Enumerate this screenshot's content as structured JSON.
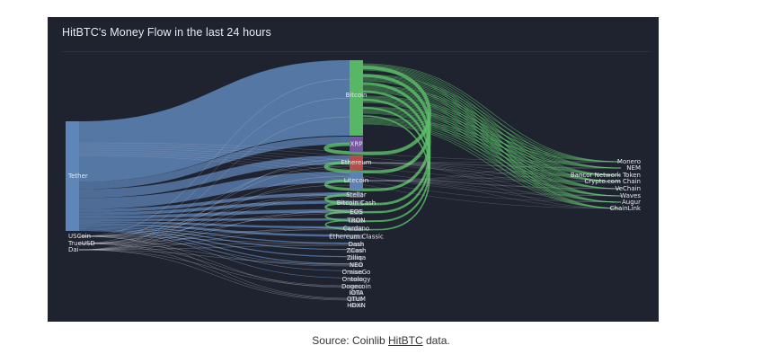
{
  "title": "HitBTC's Money Flow in the last 24 hours",
  "caption": {
    "prefix": "Source: Coinlib ",
    "link_text": "HitBTC",
    "suffix": " data."
  },
  "colors": {
    "background": "#1f2330",
    "tether_flow": "#5f86b8",
    "bitcoin_flow": "#5cc06a",
    "xrp_node": "#7a5aa8",
    "ethereum_node": "#c0504d",
    "thin_flow": "#c8ccd8",
    "label": "#e6e8ee"
  },
  "nodes": {
    "sources": [
      "Tether",
      "USCoin",
      "TrueUSD",
      "Dai"
    ],
    "middle": [
      "Bitcoin",
      "XRP",
      "Ethereum",
      "Litecoin",
      "Stellar",
      "Bitcoin Cash",
      "EOS",
      "TRON",
      "Cardano",
      "Ethereum Classic",
      "Dash",
      "ZCash",
      "Zilliqa",
      "NEO",
      "OmiseGo",
      "Ontology",
      "Dogecoin",
      "IOTA",
      "QTUM",
      "HDXN"
    ],
    "right": [
      "Monero",
      "NEM",
      "Bancor Network Token",
      "Crypto.com Chain",
      "VeChain",
      "Waves",
      "Augur",
      "ChainLink"
    ]
  }
}
